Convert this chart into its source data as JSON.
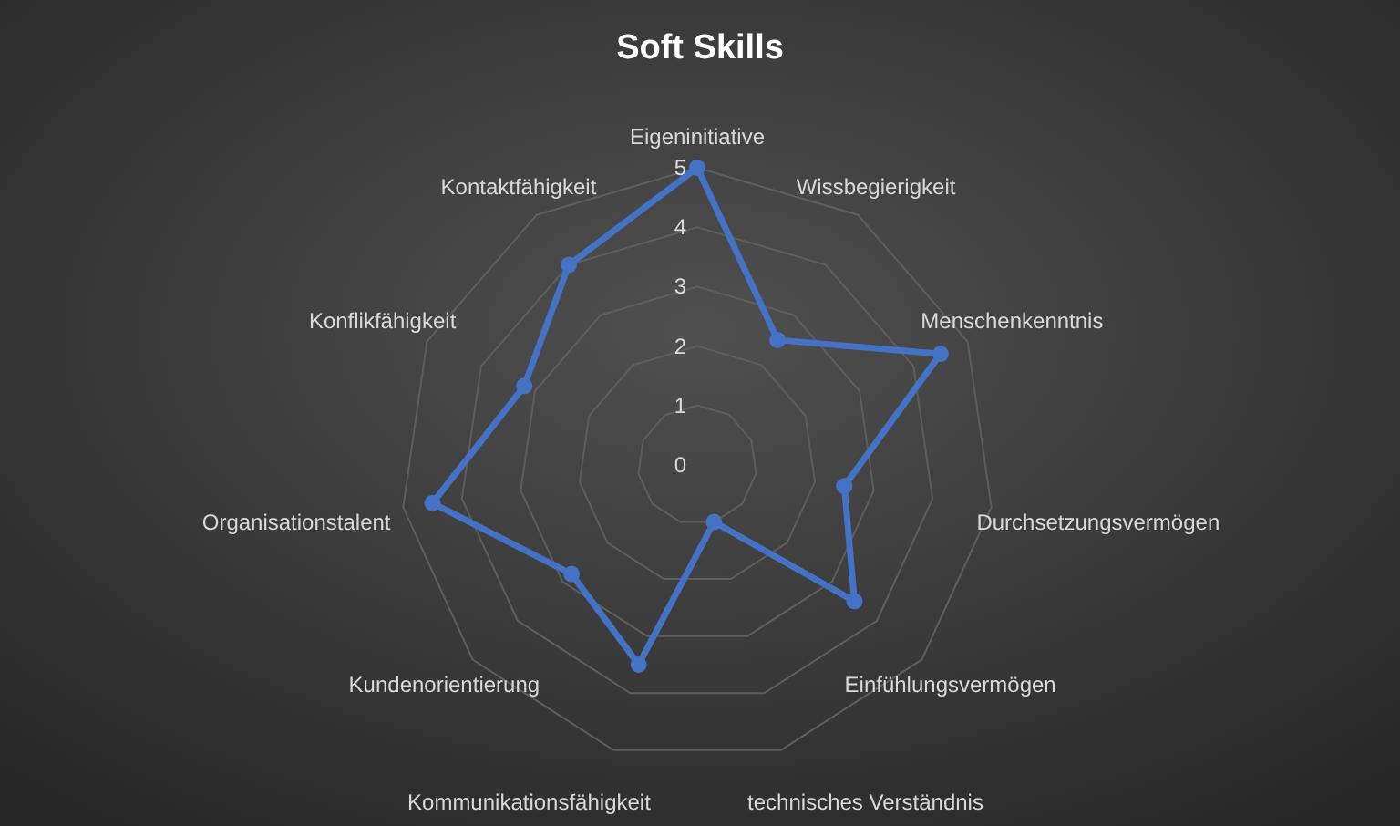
{
  "chart_data": {
    "type": "radar",
    "title": "Soft Skills",
    "categories": [
      "Eigeninitiative",
      "Wissbegierigkeit",
      "Menschenkenntnis",
      "Durchsetzungsvermögen",
      "Einfühlungsvermögen",
      "technisches Verständnis",
      "Kommunikationsfähigkeit",
      "Kundenorientierung",
      "Organisationstalent",
      "Konflikfähigkeit",
      "Kontaktfähigkeit"
    ],
    "series": [
      {
        "color": "#4472c4",
        "values": [
          5,
          2.5,
          4.5,
          2.5,
          3.5,
          1,
          3.5,
          2.8,
          4.5,
          3.2,
          4
        ]
      }
    ],
    "ylim": [
      0,
      5
    ],
    "yticks": [
      0,
      1,
      2,
      3,
      4,
      5
    ],
    "grid": true,
    "marker": "circle"
  }
}
